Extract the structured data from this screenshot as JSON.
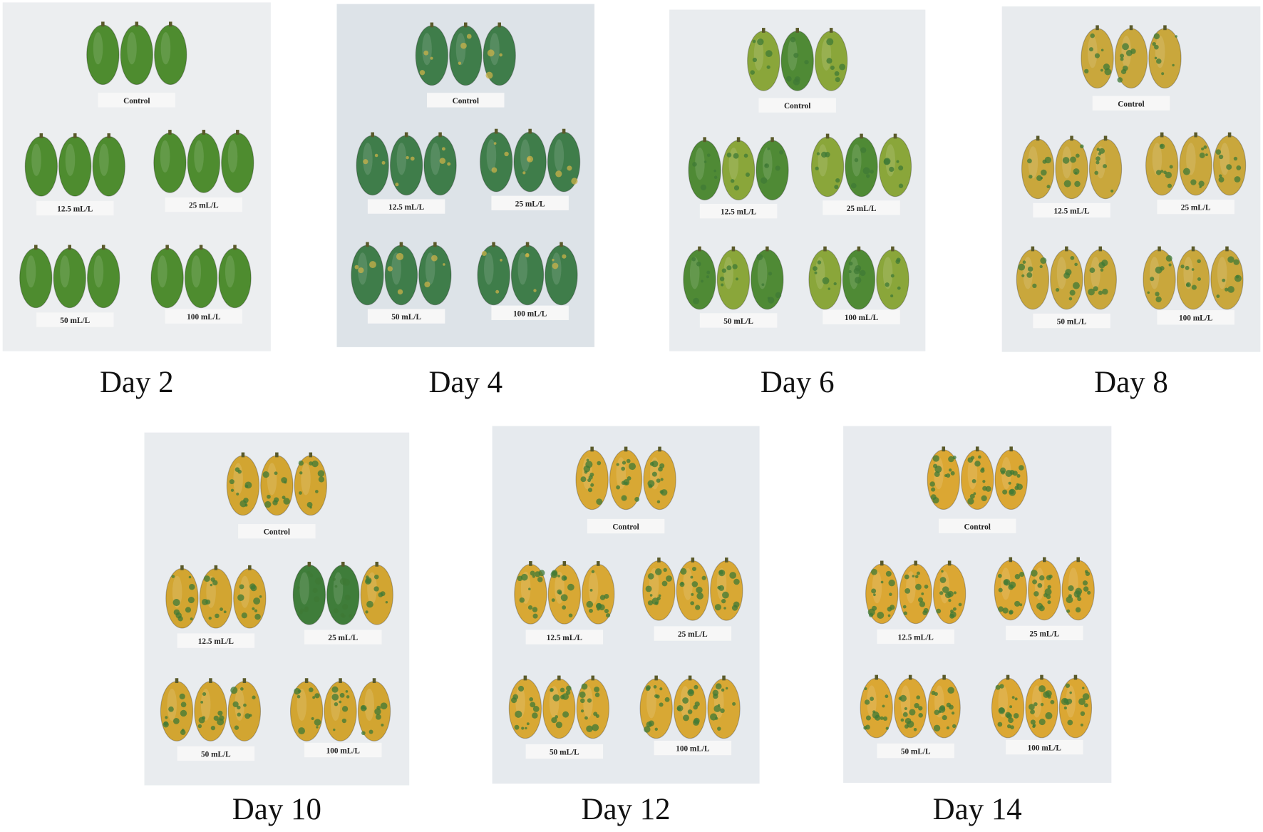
{
  "panels": [
    {
      "caption": "Day 2",
      "groups": [
        "Control",
        "12.5 mL/L",
        "25 mL/L",
        "50 mL/L",
        "100 mL/L"
      ]
    },
    {
      "caption": "Day 4",
      "groups": [
        "Control",
        "12.5 mL/L",
        "25 mL/L",
        "50 mL/L",
        "100 mL/L"
      ]
    },
    {
      "caption": "Day 6",
      "groups": [
        "Control",
        "12.5 mL/L",
        "25 mL/L",
        "50 mL/L",
        "100 mL/L"
      ]
    },
    {
      "caption": "Day 8",
      "groups": [
        "Control",
        "12.5 mL/L",
        "25 mL/L",
        "50 mL/L",
        "100 mL/L"
      ]
    },
    {
      "caption": "Day 10",
      "groups": [
        "Control",
        "12.5 mL/L",
        "25 mL/L",
        "50 mL/L",
        "100 mL/L"
      ]
    },
    {
      "caption": "Day 12",
      "groups": [
        "Control",
        "12.5 mL/L",
        "25 mL/L",
        "50 mL/L",
        "100 mL/L"
      ]
    },
    {
      "caption": "Day 14",
      "groups": [
        "Control",
        "12.5 mL/L",
        "25 mL/L",
        "50 mL/L",
        "100 mL/L"
      ]
    }
  ]
}
